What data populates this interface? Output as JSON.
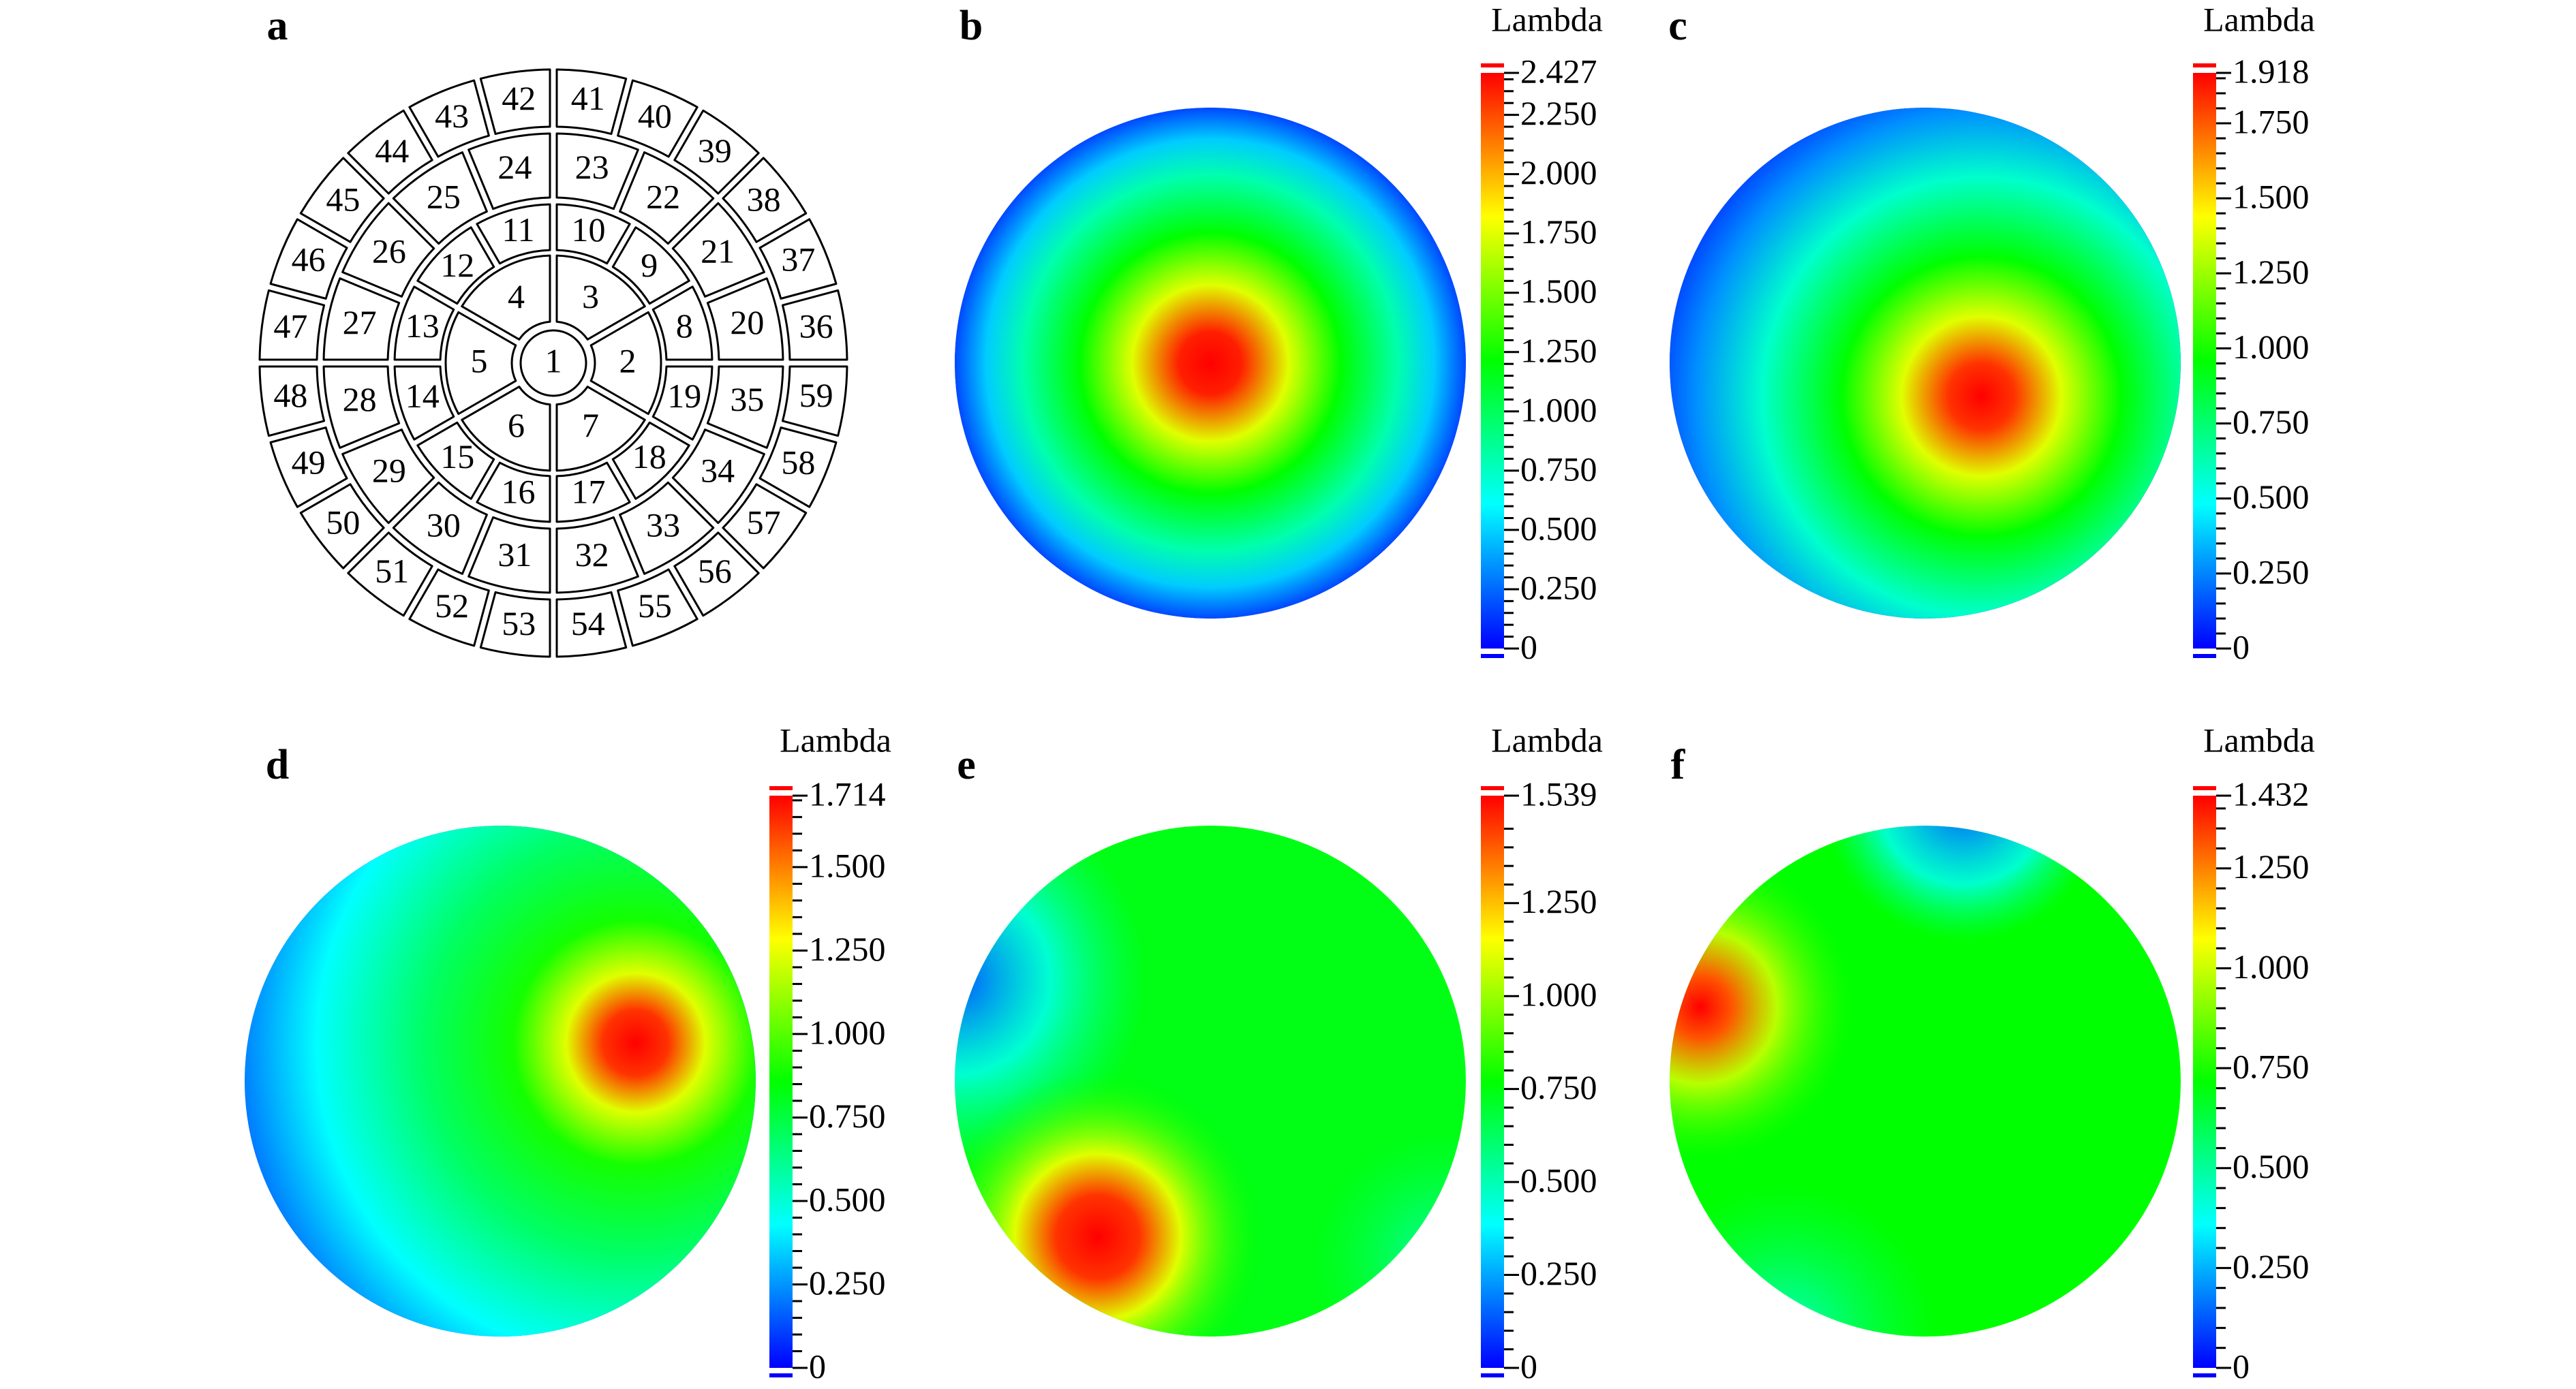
{
  "diagram": {
    "panel": "a",
    "cells": [
      "1",
      "2",
      "3",
      "4",
      "5",
      "6",
      "7",
      "8",
      "9",
      "10",
      "11",
      "12",
      "13",
      "14",
      "15",
      "16",
      "17",
      "18",
      "19",
      "20",
      "21",
      "22",
      "23",
      "24",
      "25",
      "26",
      "27",
      "28",
      "29",
      "30",
      "31",
      "32",
      "33",
      "34",
      "35",
      "36",
      "37",
      "38",
      "39",
      "40",
      "41",
      "42",
      "43",
      "44",
      "45",
      "46",
      "47",
      "48",
      "49",
      "50",
      "51",
      "52",
      "53",
      "54",
      "55",
      "56",
      "57",
      "58",
      "59"
    ]
  },
  "chart_data": [
    {
      "type": "heatmap",
      "panel": "b",
      "colorbar_label": "Lambda",
      "colormap": [
        "#0000ff",
        "#00ffff",
        "#00ff00",
        "#ffff00",
        "#ff0000"
      ],
      "clim": [
        0,
        2.427
      ],
      "cticks": [
        0,
        {
          "value": 0.25,
          "label": "0.250"
        },
        {
          "value": 0.5,
          "label": "0.500"
        },
        {
          "value": 0.75,
          "label": "0.750"
        },
        {
          "value": 1,
          "label": "1.000"
        },
        {
          "value": 1.25,
          "label": "1.250"
        },
        {
          "value": 1.5,
          "label": "1.500"
        },
        {
          "value": 1.75,
          "label": "1.750"
        },
        {
          "value": 2,
          "label": "2.000"
        },
        {
          "value": 2.25,
          "label": "2.250"
        },
        2.427
      ]
    },
    {
      "type": "heatmap",
      "panel": "c",
      "colorbar_label": "Lambda",
      "colormap": [
        "#0000ff",
        "#00ffff",
        "#00ff00",
        "#ffff00",
        "#ff0000"
      ],
      "clim": [
        0,
        1.918
      ],
      "cticks": [
        0,
        {
          "value": 0.25,
          "label": "0.250"
        },
        {
          "value": 0.5,
          "label": "0.500"
        },
        {
          "value": 0.75,
          "label": "0.750"
        },
        {
          "value": 1,
          "label": "1.000"
        },
        {
          "value": 1.25,
          "label": "1.250"
        },
        {
          "value": 1.5,
          "label": "1.500"
        },
        {
          "value": 1.75,
          "label": "1.750"
        },
        1.918
      ]
    },
    {
      "type": "heatmap",
      "panel": "d",
      "colorbar_label": "Lambda",
      "colormap": [
        "#0000ff",
        "#00ffff",
        "#00ff00",
        "#ffff00",
        "#ff0000"
      ],
      "clim": [
        0,
        1.714
      ],
      "cticks": [
        0,
        {
          "value": 0.25,
          "label": "0.250"
        },
        {
          "value": 0.5,
          "label": "0.500"
        },
        {
          "value": 0.75,
          "label": "0.750"
        },
        {
          "value": 1,
          "label": "1.000"
        },
        {
          "value": 1.25,
          "label": "1.250"
        },
        {
          "value": 1.5,
          "label": "1.500"
        },
        1.714
      ]
    },
    {
      "type": "heatmap",
      "panel": "e",
      "colorbar_label": "Lambda",
      "colormap": [
        "#0000ff",
        "#00ffff",
        "#00ff00",
        "#ffff00",
        "#ff0000"
      ],
      "clim": [
        0,
        1.539
      ],
      "cticks": [
        0,
        {
          "value": 0.25,
          "label": "0.250"
        },
        {
          "value": 0.5,
          "label": "0.500"
        },
        {
          "value": 0.75,
          "label": "0.750"
        },
        {
          "value": 1,
          "label": "1.000"
        },
        {
          "value": 1.25,
          "label": "1.250"
        },
        1.539
      ]
    },
    {
      "type": "heatmap",
      "panel": "f",
      "colorbar_label": "Lambda",
      "colormap": [
        "#0000ff",
        "#00ffff",
        "#00ff00",
        "#ffff00",
        "#ff0000"
      ],
      "clim": [
        0,
        1.432
      ],
      "cticks": [
        0,
        {
          "value": 0.25,
          "label": "0.250"
        },
        {
          "value": 0.5,
          "label": "0.500"
        },
        {
          "value": 0.75,
          "label": "0.750"
        },
        {
          "value": 1,
          "label": "1.000"
        },
        {
          "value": 1.25,
          "label": "1.250"
        },
        1.432
      ]
    }
  ]
}
